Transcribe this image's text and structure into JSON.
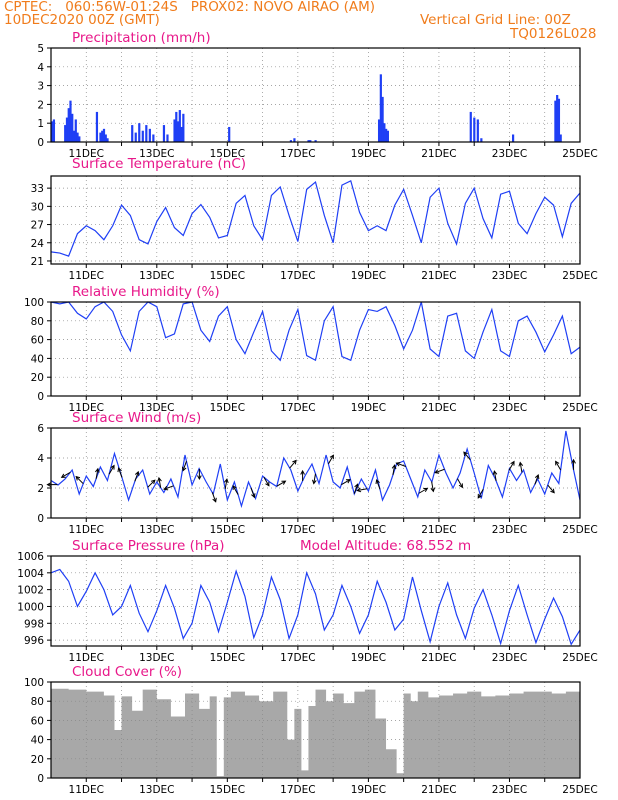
{
  "header": {
    "line1_left": "CPTEC:   060:56W-01:24S   PROX02: NOVO AIRAO (AM)",
    "line2_left": "10DEC2020 00Z (GMT)",
    "line2_right": "Vertical Grid Line: 00Z",
    "line3_right": "TQ0126L028",
    "color": "#f07c1c"
  },
  "x_ticks": [
    "11DEC",
    "13DEC",
    "15DEC",
    "17DEC",
    "19DEC",
    "21DEC",
    "23DEC",
    "25DEC"
  ],
  "chart_data": [
    {
      "type": "bar",
      "title": "Precipitation (mm/h)",
      "ylim": [
        0,
        5
      ],
      "yticks": [
        "0",
        "1",
        "2",
        "3",
        "4",
        "5"
      ],
      "x_unit": "days since 10DEC2020 00Z",
      "x": [
        0.04,
        0.08,
        0.4,
        0.45,
        0.5,
        0.55,
        0.6,
        0.65,
        0.7,
        0.75,
        0.8,
        1.3,
        1.4,
        1.45,
        1.5,
        1.55,
        1.6,
        2.3,
        2.4,
        2.5,
        2.6,
        2.7,
        2.8,
        2.9,
        3.2,
        3.3,
        3.5,
        3.55,
        3.6,
        3.65,
        3.7,
        3.75,
        5.05,
        6.8,
        6.9,
        7.3,
        7.35,
        7.5,
        9.3,
        9.35,
        9.4,
        9.45,
        9.5,
        9.55,
        11.9,
        12.0,
        12.1,
        12.2,
        13.1,
        14.3,
        14.35,
        14.4,
        14.45
      ],
      "values": [
        1.1,
        1.2,
        0.9,
        1.3,
        1.8,
        2.2,
        1.5,
        0.6,
        1.2,
        0.5,
        0.3,
        1.6,
        0.5,
        0.6,
        0.7,
        0.4,
        0.2,
        0.9,
        0.5,
        1.0,
        0.6,
        0.9,
        0.7,
        0.4,
        0.9,
        0.4,
        1.2,
        1.6,
        1.1,
        1.7,
        0.8,
        1.5,
        0.8,
        0.1,
        0.2,
        0.1,
        0.1,
        0.1,
        1.2,
        3.6,
        2.4,
        1.0,
        0.7,
        0.6,
        1.6,
        1.3,
        1.2,
        0.2,
        0.4,
        2.2,
        2.5,
        2.3,
        0.4
      ],
      "color": "#1f3ff5"
    },
    {
      "type": "line",
      "title": "Surface Temperature (nC)",
      "ylim": [
        20.5,
        35
      ],
      "yticks": [
        "21",
        "24",
        "27",
        "30",
        "33"
      ],
      "x": [
        0,
        0.25,
        0.5,
        0.75,
        1.0,
        1.25,
        1.5,
        1.75,
        2.0,
        2.25,
        2.5,
        2.75,
        3.0,
        3.25,
        3.5,
        3.75,
        4.0,
        4.25,
        4.5,
        4.75,
        5.0,
        5.25,
        5.5,
        5.75,
        6.0,
        6.25,
        6.5,
        6.75,
        7.0,
        7.25,
        7.5,
        7.75,
        8.0,
        8.25,
        8.5,
        8.75,
        9.0,
        9.25,
        9.5,
        9.75,
        10.0,
        10.25,
        10.5,
        10.75,
        11.0,
        11.25,
        11.5,
        11.75,
        12.0,
        12.25,
        12.5,
        12.75,
        13.0,
        13.25,
        13.5,
        13.75,
        14.0,
        14.25,
        14.5,
        14.75,
        15.0
      ],
      "values": [
        22.5,
        22.3,
        21.8,
        25.5,
        26.8,
        26.0,
        24.5,
        26.8,
        30.2,
        28.5,
        24.5,
        23.8,
        27.5,
        29.8,
        26.5,
        25.2,
        28.8,
        30.3,
        28.2,
        24.8,
        25.2,
        30.5,
        31.8,
        26.8,
        24.5,
        31.8,
        33.2,
        28.5,
        24.2,
        32.8,
        34.0,
        28.5,
        24.0,
        33.5,
        34.2,
        29.0,
        26.0,
        26.8,
        26.0,
        30.2,
        32.8,
        28.5,
        24.0,
        31.5,
        33.0,
        27.2,
        23.8,
        30.5,
        33.0,
        28.0,
        24.8,
        32.0,
        32.5,
        27.2,
        25.5,
        28.8,
        31.5,
        30.2,
        25.0,
        30.5,
        32.2
      ],
      "color": "#1f3ff5"
    },
    {
      "type": "line",
      "title": "Relative Humidity (%)",
      "ylim": [
        0,
        100
      ],
      "yticks": [
        "0",
        "20",
        "40",
        "60",
        "80",
        "100"
      ],
      "x": [
        0,
        0.25,
        0.5,
        0.75,
        1.0,
        1.25,
        1.5,
        1.75,
        2.0,
        2.25,
        2.5,
        2.75,
        3.0,
        3.25,
        3.5,
        3.75,
        4.0,
        4.25,
        4.5,
        4.75,
        5.0,
        5.25,
        5.5,
        5.75,
        6.0,
        6.25,
        6.5,
        6.75,
        7.0,
        7.25,
        7.5,
        7.75,
        8.0,
        8.25,
        8.5,
        8.75,
        9.0,
        9.25,
        9.5,
        9.75,
        10.0,
        10.25,
        10.5,
        10.75,
        11.0,
        11.25,
        11.5,
        11.75,
        12.0,
        12.25,
        12.5,
        12.75,
        13.0,
        13.25,
        13.5,
        13.75,
        14.0,
        14.25,
        14.5,
        14.75,
        15.0
      ],
      "values": [
        100,
        98,
        100,
        88,
        82,
        95,
        100,
        90,
        65,
        48,
        90,
        100,
        95,
        62,
        66,
        98,
        100,
        70,
        58,
        85,
        95,
        60,
        45,
        68,
        90,
        48,
        38,
        70,
        92,
        43,
        38,
        80,
        95,
        42,
        38,
        70,
        92,
        90,
        95,
        75,
        50,
        70,
        100,
        50,
        42,
        85,
        88,
        48,
        40,
        68,
        92,
        48,
        42,
        80,
        85,
        68,
        47,
        65,
        85,
        45,
        52
      ],
      "color": "#1f3ff5"
    },
    {
      "type": "line",
      "title": "Surface Wind (m/s)",
      "ylim": [
        0,
        6
      ],
      "yticks": [
        "0",
        "2",
        "4",
        "6"
      ],
      "x": [
        0,
        0.2,
        0.4,
        0.6,
        0.8,
        1.0,
        1.2,
        1.4,
        1.6,
        1.8,
        2.0,
        2.2,
        2.4,
        2.6,
        2.8,
        3.0,
        3.2,
        3.4,
        3.6,
        3.8,
        4.0,
        4.2,
        4.4,
        4.6,
        4.8,
        5.0,
        5.2,
        5.4,
        5.6,
        5.8,
        6.0,
        6.2,
        6.4,
        6.6,
        6.8,
        7.0,
        7.2,
        7.4,
        7.6,
        7.8,
        8.0,
        8.2,
        8.4,
        8.6,
        8.8,
        9.0,
        9.2,
        9.4,
        9.6,
        9.8,
        10.0,
        10.2,
        10.4,
        10.6,
        10.8,
        11.0,
        11.2,
        11.4,
        11.6,
        11.8,
        12.0,
        12.2,
        12.4,
        12.6,
        12.8,
        13.0,
        13.2,
        13.4,
        13.6,
        13.8,
        14.0,
        14.2,
        14.4,
        14.6,
        14.8,
        15.0
      ],
      "values": [
        2.5,
        2.2,
        2.6,
        3.2,
        1.6,
        2.8,
        2.1,
        3.4,
        2.5,
        4.3,
        2.8,
        1.2,
        2.6,
        3.2,
        1.6,
        2.4,
        1.7,
        2.6,
        1.4,
        4.2,
        2.2,
        3.3,
        2.4,
        1.6,
        3.6,
        1.2,
        2.4,
        0.8,
        2.4,
        1.3,
        2.8,
        2.4,
        2.1,
        4.0,
        3.2,
        1.8,
        2.8,
        3.6,
        2.3,
        4.2,
        2.4,
        2.0,
        3.4,
        1.6,
        2.6,
        1.8,
        3.2,
        1.2,
        2.2,
        3.6,
        3.8,
        2.6,
        1.4,
        3.2,
        2.4,
        4.2,
        3.0,
        2.0,
        3.0,
        4.6,
        3.0,
        1.3,
        3.5,
        2.6,
        1.4,
        3.3,
        2.5,
        3.2,
        1.7,
        2.6,
        1.6,
        3.0,
        2.3,
        5.8,
        3.4,
        1.2
      ],
      "arrow_dirs_deg": [
        180,
        210,
        135,
        80,
        60,
        110,
        70,
        45,
        100,
        200,
        250,
        270,
        290,
        80,
        120,
        290,
        300,
        30,
        50,
        90,
        260,
        60,
        30,
        70,
        190,
        110,
        80,
        160,
        30,
        280,
        200,
        300,
        130,
        240,
        100,
        60,
        100,
        70,
        310,
        120,
        90
      ],
      "color": "#1f3ff5"
    },
    {
      "type": "line",
      "title": "Surface Pressure (hPa)",
      "annotation": "Model Altitude: 68.552 m",
      "ylim": [
        995.3,
        1006
      ],
      "yticks": [
        "996",
        "998",
        "1000",
        "1002",
        "1004",
        "1006"
      ],
      "x": [
        0,
        0.25,
        0.5,
        0.75,
        1.0,
        1.25,
        1.5,
        1.75,
        2.0,
        2.25,
        2.5,
        2.75,
        3.0,
        3.25,
        3.5,
        3.75,
        4.0,
        4.25,
        4.5,
        4.75,
        5.0,
        5.25,
        5.5,
        5.75,
        6.0,
        6.25,
        6.5,
        6.75,
        7.0,
        7.25,
        7.5,
        7.75,
        8.0,
        8.25,
        8.5,
        8.75,
        9.0,
        9.25,
        9.5,
        9.75,
        10.0,
        10.25,
        10.5,
        10.75,
        11.0,
        11.25,
        11.5,
        11.75,
        12.0,
        12.25,
        12.5,
        12.75,
        13.0,
        13.25,
        13.5,
        13.75,
        14.0,
        14.25,
        14.5,
        14.75,
        15.0
      ],
      "values": [
        1004.0,
        1004.4,
        1003.0,
        1000.0,
        1001.8,
        1004.0,
        1002.0,
        999.0,
        1000.0,
        1002.5,
        999.2,
        997.0,
        999.5,
        1002.5,
        999.8,
        996.2,
        998.0,
        1002.5,
        1000.5,
        997.0,
        1000.5,
        1004.2,
        1001.2,
        996.3,
        999.0,
        1003.5,
        1000.8,
        996.2,
        999.0,
        1004.0,
        1001.5,
        997.2,
        999.0,
        1002.5,
        1000.0,
        996.8,
        999.0,
        1003.0,
        1000.5,
        997.2,
        998.5,
        1003.5,
        999.5,
        995.8,
        1000.0,
        1002.8,
        999.0,
        996.2,
        999.8,
        1002.0,
        999.0,
        995.6,
        999.5,
        1002.5,
        999.0,
        995.7,
        998.5,
        1001.0,
        998.8,
        995.5,
        997.2
      ],
      "color": "#1f3ff5"
    },
    {
      "type": "area",
      "title": "Cloud Cover (%)",
      "ylim": [
        0,
        100
      ],
      "yticks": [
        "0",
        "20",
        "40",
        "60",
        "80",
        "100"
      ],
      "x": [
        0,
        0.5,
        1.0,
        1.5,
        1.8,
        2.0,
        2.3,
        2.6,
        3.0,
        3.4,
        3.8,
        4.2,
        4.5,
        4.7,
        4.9,
        5.1,
        5.5,
        5.9,
        6.3,
        6.7,
        6.9,
        7.1,
        7.3,
        7.5,
        7.8,
        8.0,
        8.3,
        8.6,
        8.9,
        9.2,
        9.5,
        9.8,
        10.0,
        10.2,
        10.4,
        10.7,
        11.0,
        11.4,
        11.8,
        12.2,
        12.6,
        13.0,
        13.4,
        13.8,
        14.2,
        14.6,
        15.0
      ],
      "values": [
        93,
        92,
        90,
        86,
        50,
        85,
        70,
        92,
        82,
        64,
        88,
        72,
        85,
        2,
        84,
        90,
        86,
        80,
        90,
        40,
        72,
        8,
        75,
        92,
        80,
        88,
        78,
        90,
        92,
        62,
        30,
        5,
        88,
        80,
        90,
        84,
        86,
        88,
        90,
        85,
        86,
        88,
        90,
        90,
        88,
        90,
        92
      ],
      "color": "#a8a8a8"
    }
  ]
}
